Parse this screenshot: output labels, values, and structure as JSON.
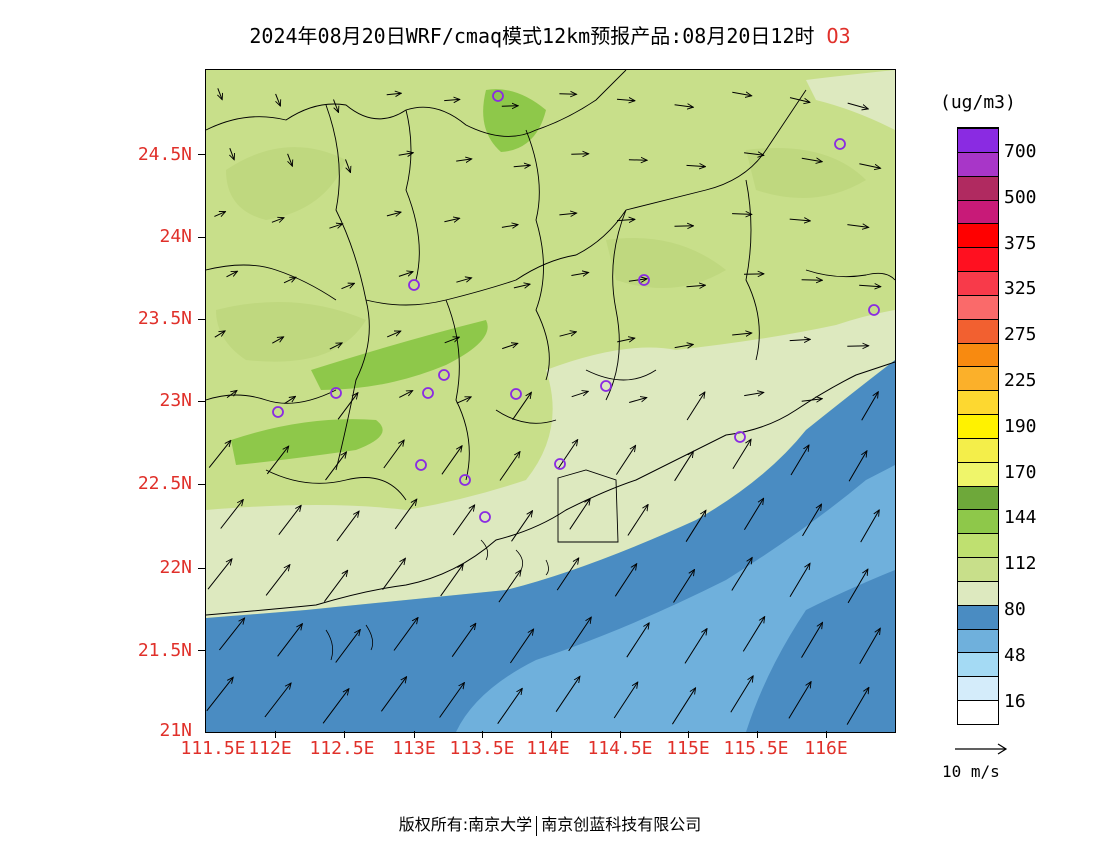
{
  "title": {
    "main": "2024年08月20日WRF/cmaq模式12km预报产品:08月20日12时",
    "species": "O3"
  },
  "axes": {
    "y_labels": [
      "24.5N",
      "24N",
      "23.5N",
      "23N",
      "22.5N",
      "22N",
      "21.5N",
      "21N"
    ],
    "x_labels": [
      "111.5E",
      "112E",
      "112.5E",
      "113E",
      "113.5E",
      "114E",
      "114.5E",
      "115E",
      "115.5E",
      "116E"
    ]
  },
  "colorbar": {
    "units": "(ug/m3)",
    "labels": [
      "700",
      "500",
      "375",
      "325",
      "275",
      "225",
      "190",
      "170",
      "144",
      "112",
      "80",
      "48",
      "16"
    ],
    "colors": [
      "#ffffff",
      "#d4ecfa",
      "#a4daf4",
      "#6fb0dc",
      "#4a8cc2",
      "#dde9bf",
      "#c8df8a",
      "#bfe070",
      "#8ec84a",
      "#6ea83a",
      "#eff56a",
      "#f4ee4a",
      "#fff200",
      "#fdd830",
      "#fbb02a",
      "#f88a10",
      "#f26030",
      "#fa6a6a",
      "#f83a4a",
      "#ff1020",
      "#ff0000",
      "#c81a78",
      "#b02a60",
      "#a836c8",
      "#8a2be2"
    ]
  },
  "wind_reference": {
    "label": "10 m/s"
  },
  "stations_count": 16,
  "copyright": {
    "left": "版权所有:南京大学",
    "right": "南京创蓝科技有限公司"
  },
  "colors": {
    "accent_red": "#e0302a",
    "sea": "#4a8cc2",
    "sea_light": "#6fb0dc",
    "land_low": "#dde9bf",
    "land_mid": "#c8df8a",
    "land_high": "#8ec84a",
    "station": "#8a2be2"
  }
}
